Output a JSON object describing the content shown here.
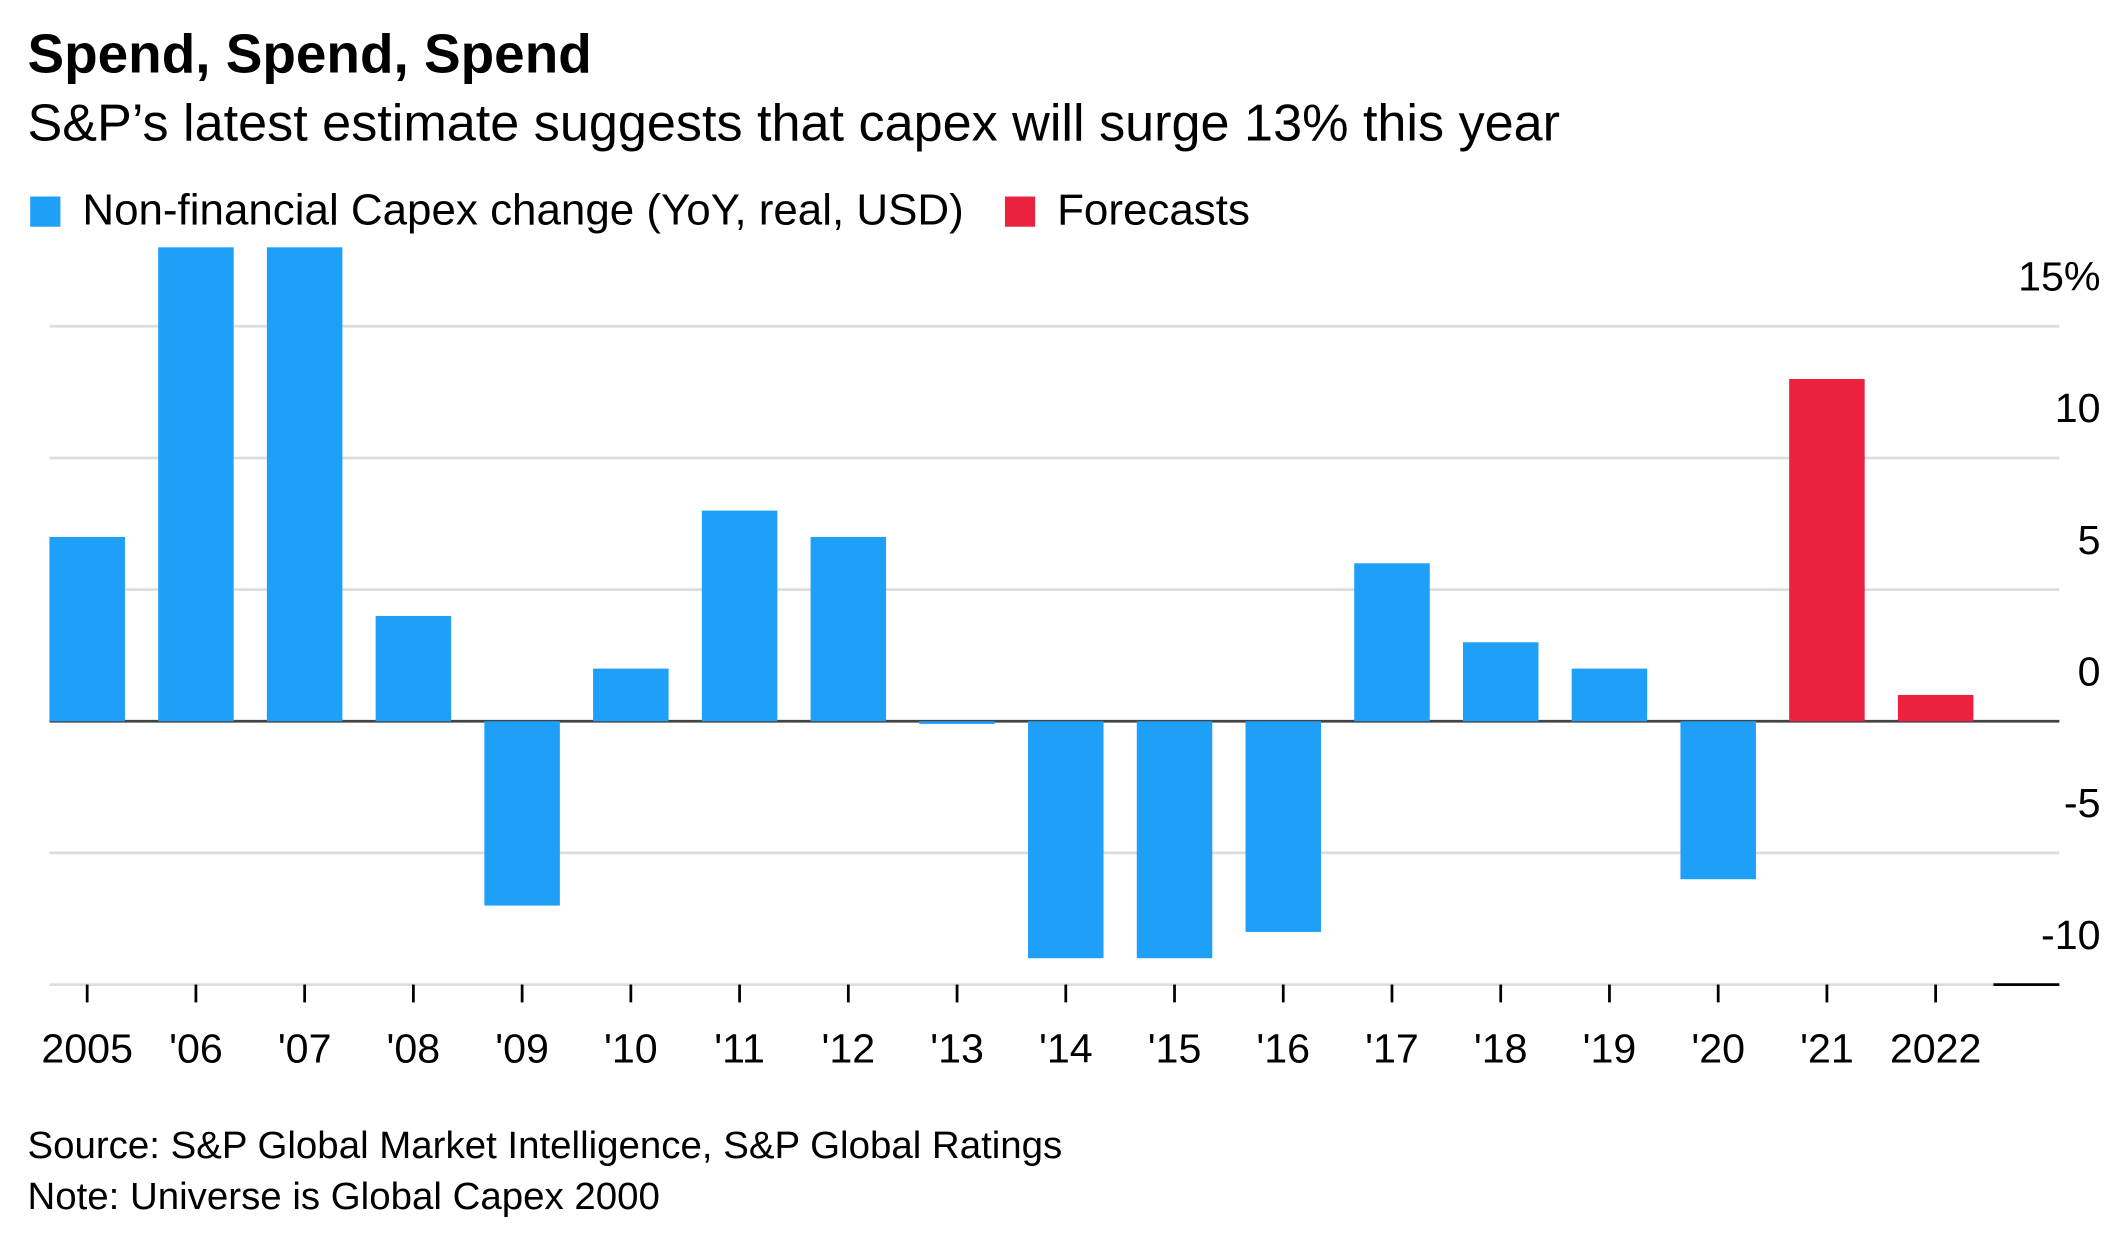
{
  "chart_data": {
    "type": "bar",
    "title": "Spend, Spend, Spend",
    "subtitle": "S&P’s latest estimate suggests that capex will surge 13% this year",
    "categories": [
      "2005",
      "'06",
      "'07",
      "'08",
      "'09",
      "'10",
      "'11",
      "'12",
      "'13",
      "'14",
      "'15",
      "'16",
      "'17",
      "'18",
      "'19",
      "'20",
      "'21",
      "2022"
    ],
    "series": [
      {
        "name": "Non-financial Capex change (YoY, real, USD)",
        "color": "#1e9ff8",
        "values": [
          7,
          18,
          18,
          4,
          -7,
          2,
          8,
          7,
          -0.1,
          -9,
          -9,
          -8,
          6,
          3,
          2,
          -6,
          null,
          null
        ]
      },
      {
        "name": "Forecasts",
        "color": "#ea213f",
        "values": [
          null,
          null,
          null,
          null,
          null,
          null,
          null,
          null,
          null,
          null,
          null,
          null,
          null,
          null,
          null,
          null,
          13,
          1
        ]
      }
    ],
    "ylim": [
      -10,
      18
    ],
    "yticks": [
      {
        "value": 15,
        "label": "15%"
      },
      10,
      5,
      0,
      -5,
      -10
    ],
    "grid": true,
    "source": "Source: S&P Global Market Intelligence, S&P Global Ratings",
    "note": "Note: Universe is Global Capex 2000"
  }
}
